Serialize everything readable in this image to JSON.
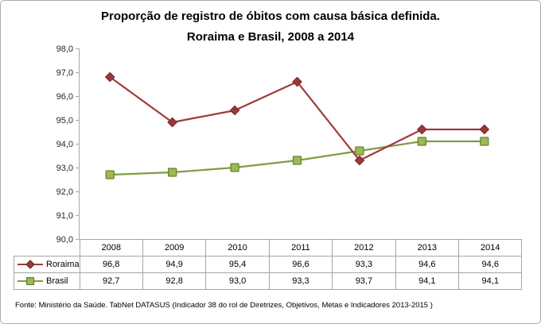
{
  "title": {
    "line1": "Proporção de registro de óbitos com causa básica definida.",
    "line2": "Roraima e Brasil, 2008 a 2014"
  },
  "chart_data": {
    "type": "line",
    "categories": [
      "2008",
      "2009",
      "2010",
      "2011",
      "2012",
      "2013",
      "2014"
    ],
    "series": [
      {
        "name": "Roraima",
        "values": [
          96.8,
          94.9,
          95.4,
          96.6,
          93.3,
          94.6,
          94.6
        ],
        "line_color": "#9E3B39",
        "marker": "diamond",
        "marker_fill": "#9A3A38",
        "marker_stroke": "#7C2E2C"
      },
      {
        "name": "Brasil",
        "values": [
          92.7,
          92.8,
          93.0,
          93.3,
          93.7,
          94.1,
          94.1
        ],
        "line_color": "#7E9C44",
        "marker": "square",
        "marker_fill": "#9BB955",
        "marker_stroke": "#68832F"
      }
    ],
    "ylim": [
      90,
      98
    ],
    "ytick_step": 1,
    "grid": false,
    "legend_position": "data-table-left",
    "decimal_separator": ",",
    "axis_color": "#A6A6A6",
    "tick_label_color": "#262626"
  },
  "footer": {
    "source": "Fonte: Ministério da Saúde. TabNet DATASUS (Indicador 38 do rol de Diretrizes, Objetivos, Metas e Indicadores 2013-2015 )"
  }
}
